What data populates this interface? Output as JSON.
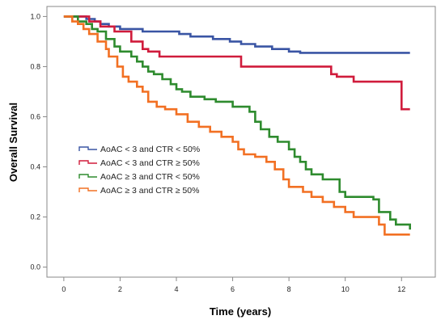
{
  "chart_data": {
    "type": "line",
    "title": "",
    "xlabel": "Time (years)",
    "ylabel": "Overall Survival",
    "xlim": [
      -0.6,
      13.2
    ],
    "ylim": [
      -0.04,
      1.04
    ],
    "x_ticks": [
      0,
      2,
      4,
      6,
      8,
      10,
      12
    ],
    "y_ticks": [
      0.0,
      0.2,
      0.4,
      0.6,
      0.8,
      1.0
    ],
    "x_tick_labels": [
      "0",
      "2",
      "4",
      "6",
      "8",
      "10",
      "12"
    ],
    "y_tick_labels": [
      "0.0",
      "0.2",
      "0.4",
      "0.6",
      "0.8",
      "1.0"
    ],
    "grid": false,
    "legend_position": "left-middle",
    "series": [
      {
        "name": "AoAC < 3 and CTR < 50%",
        "color": "#3a55a4",
        "step": true,
        "points": [
          [
            0,
            1.0
          ],
          [
            0.8,
            0.99
          ],
          [
            1.1,
            0.98
          ],
          [
            1.3,
            0.97
          ],
          [
            1.6,
            0.96
          ],
          [
            2.0,
            0.95
          ],
          [
            2.8,
            0.94
          ],
          [
            4.1,
            0.93
          ],
          [
            4.5,
            0.92
          ],
          [
            5.3,
            0.91
          ],
          [
            5.9,
            0.9
          ],
          [
            6.3,
            0.89
          ],
          [
            6.8,
            0.88
          ],
          [
            7.4,
            0.87
          ],
          [
            8.0,
            0.86
          ],
          [
            8.4,
            0.855
          ],
          [
            12.3,
            0.855
          ]
        ]
      },
      {
        "name": "AoAC < 3 and CTR ≥ 50%",
        "color": "#d01c3c",
        "step": true,
        "points": [
          [
            0,
            1.0
          ],
          [
            0.9,
            0.98
          ],
          [
            1.3,
            0.96
          ],
          [
            1.8,
            0.94
          ],
          [
            2.4,
            0.9
          ],
          [
            2.8,
            0.87
          ],
          [
            3.0,
            0.86
          ],
          [
            3.4,
            0.84
          ],
          [
            6.3,
            0.8
          ],
          [
            9.5,
            0.77
          ],
          [
            9.7,
            0.76
          ],
          [
            10.3,
            0.74
          ],
          [
            11.1,
            0.74
          ],
          [
            12.0,
            0.63
          ],
          [
            12.3,
            0.63
          ]
        ]
      },
      {
        "name": "AoAC ≥ 3 and CTR < 50%",
        "color": "#2e8b2e",
        "step": true,
        "points": [
          [
            0,
            1.0
          ],
          [
            0.5,
            0.98
          ],
          [
            0.8,
            0.97
          ],
          [
            1.0,
            0.95
          ],
          [
            1.2,
            0.94
          ],
          [
            1.5,
            0.91
          ],
          [
            1.8,
            0.88
          ],
          [
            2.0,
            0.86
          ],
          [
            2.4,
            0.84
          ],
          [
            2.6,
            0.82
          ],
          [
            2.8,
            0.8
          ],
          [
            3.0,
            0.78
          ],
          [
            3.2,
            0.77
          ],
          [
            3.5,
            0.75
          ],
          [
            3.8,
            0.73
          ],
          [
            4.0,
            0.71
          ],
          [
            4.2,
            0.7
          ],
          [
            4.5,
            0.68
          ],
          [
            5.0,
            0.67
          ],
          [
            5.4,
            0.66
          ],
          [
            6.0,
            0.64
          ],
          [
            6.6,
            0.62
          ],
          [
            6.8,
            0.58
          ],
          [
            7.0,
            0.55
          ],
          [
            7.3,
            0.52
          ],
          [
            7.6,
            0.5
          ],
          [
            8.0,
            0.47
          ],
          [
            8.2,
            0.44
          ],
          [
            8.4,
            0.42
          ],
          [
            8.6,
            0.39
          ],
          [
            8.8,
            0.37
          ],
          [
            9.2,
            0.35
          ],
          [
            9.8,
            0.3
          ],
          [
            10.0,
            0.28
          ],
          [
            11.0,
            0.27
          ],
          [
            11.2,
            0.22
          ],
          [
            11.6,
            0.19
          ],
          [
            11.8,
            0.17
          ],
          [
            12.3,
            0.15
          ]
        ]
      },
      {
        "name": "AoAC ≥ 3 and CTR ≥ 50%",
        "color": "#f27023",
        "step": true,
        "points": [
          [
            0,
            1.0
          ],
          [
            0.3,
            0.98
          ],
          [
            0.5,
            0.97
          ],
          [
            0.7,
            0.95
          ],
          [
            0.9,
            0.93
          ],
          [
            1.2,
            0.9
          ],
          [
            1.5,
            0.87
          ],
          [
            1.6,
            0.84
          ],
          [
            1.9,
            0.8
          ],
          [
            2.1,
            0.76
          ],
          [
            2.3,
            0.74
          ],
          [
            2.6,
            0.72
          ],
          [
            2.8,
            0.7
          ],
          [
            3.0,
            0.66
          ],
          [
            3.3,
            0.64
          ],
          [
            3.6,
            0.63
          ],
          [
            4.0,
            0.61
          ],
          [
            4.4,
            0.58
          ],
          [
            4.8,
            0.56
          ],
          [
            5.2,
            0.54
          ],
          [
            5.6,
            0.52
          ],
          [
            6.0,
            0.5
          ],
          [
            6.2,
            0.47
          ],
          [
            6.4,
            0.45
          ],
          [
            6.8,
            0.44
          ],
          [
            7.2,
            0.42
          ],
          [
            7.5,
            0.39
          ],
          [
            7.8,
            0.35
          ],
          [
            8.0,
            0.32
          ],
          [
            8.5,
            0.3
          ],
          [
            8.8,
            0.28
          ],
          [
            9.2,
            0.26
          ],
          [
            9.6,
            0.24
          ],
          [
            10.0,
            0.22
          ],
          [
            10.3,
            0.2
          ],
          [
            11.2,
            0.17
          ],
          [
            11.4,
            0.13
          ],
          [
            12.3,
            0.13
          ]
        ]
      }
    ]
  }
}
